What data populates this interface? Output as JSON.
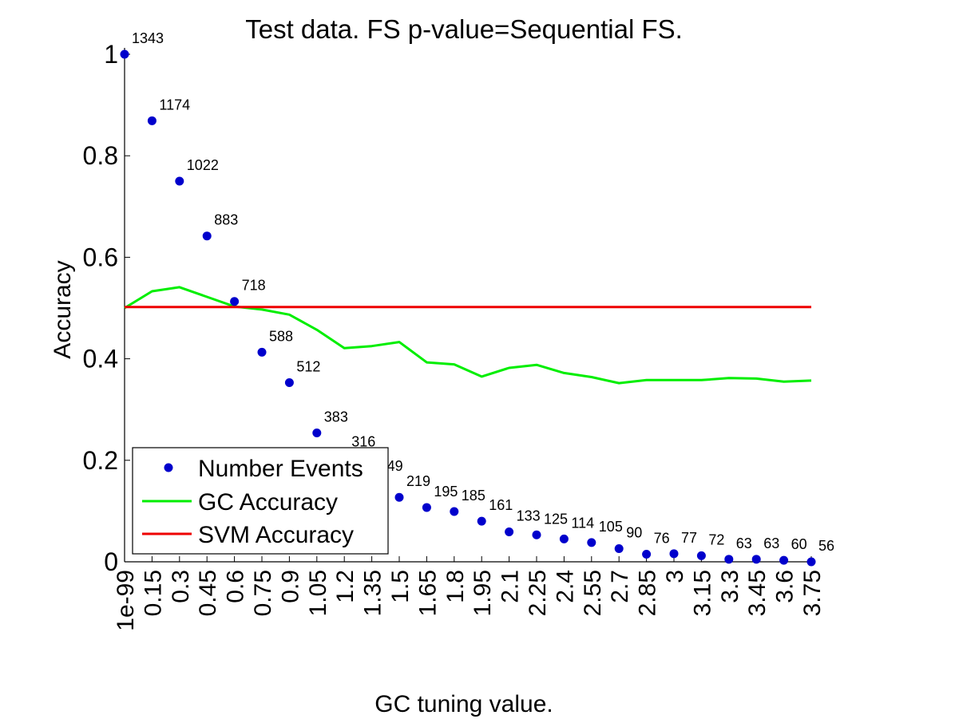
{
  "chart_data": {
    "type": "line",
    "title": "Test data. FS p-value=Sequential FS.",
    "xlabel": "GC tuning value.",
    "ylabel": "Accuracy",
    "ylim": [
      0,
      1
    ],
    "yticks": [
      "0",
      "0.2",
      "0.4",
      "0.6",
      "0.8",
      "1"
    ],
    "categories": [
      "1e-99",
      "0.15",
      "0.3",
      "0.45",
      "0.6",
      "0.75",
      "0.9",
      "1.05",
      "1.2",
      "1.35",
      "1.5",
      "1.65",
      "1.8",
      "1.95",
      "2.1",
      "2.25",
      "2.4",
      "2.55",
      "2.7",
      "2.85",
      "3",
      "3.15",
      "3.3",
      "3.45",
      "3.6",
      "3.75"
    ],
    "series": [
      {
        "name": "Number Events",
        "style": "markers",
        "color": "#0000cc",
        "values": [
          1.0,
          0.869,
          0.75,
          0.642,
          0.513,
          0.413,
          0.353,
          0.254,
          0.205,
          0.157,
          0.127,
          0.107,
          0.099,
          0.08,
          0.059,
          0.053,
          0.045,
          0.038,
          0.026,
          0.015,
          0.016,
          0.012,
          0.005,
          0.005,
          0.003,
          0.0
        ],
        "labels": [
          "1343",
          "1174",
          "1022",
          "883",
          "718",
          "588",
          "512",
          "383",
          "316",
          "249",
          "219",
          "195",
          "185",
          "161",
          "133",
          "125",
          "114",
          "105",
          "90",
          "76",
          "77",
          "72",
          "63",
          "63",
          "60",
          "56"
        ]
      },
      {
        "name": "GC Accuracy",
        "style": "line",
        "color": "#00ee00",
        "values": [
          0.5,
          0.533,
          0.541,
          0.522,
          0.503,
          0.497,
          0.487,
          0.457,
          0.421,
          0.425,
          0.433,
          0.393,
          0.389,
          0.365,
          0.382,
          0.388,
          0.372,
          0.364,
          0.352,
          0.358,
          0.358,
          0.358,
          0.362,
          0.361,
          0.355,
          0.357
        ]
      },
      {
        "name": "SVM Accuracy",
        "style": "line",
        "color": "#ee0000",
        "values": [
          0.502,
          0.502,
          0.502,
          0.502,
          0.502,
          0.502,
          0.502,
          0.502,
          0.502,
          0.502,
          0.502,
          0.502,
          0.502,
          0.502,
          0.502,
          0.502,
          0.502,
          0.502,
          0.502,
          0.502,
          0.502,
          0.502,
          0.502,
          0.502,
          0.502,
          0.502
        ]
      }
    ],
    "legend": {
      "position": "lower-left",
      "entries": [
        "Number Events",
        "GC Accuracy",
        "SVM Accuracy"
      ]
    },
    "grid": false
  }
}
